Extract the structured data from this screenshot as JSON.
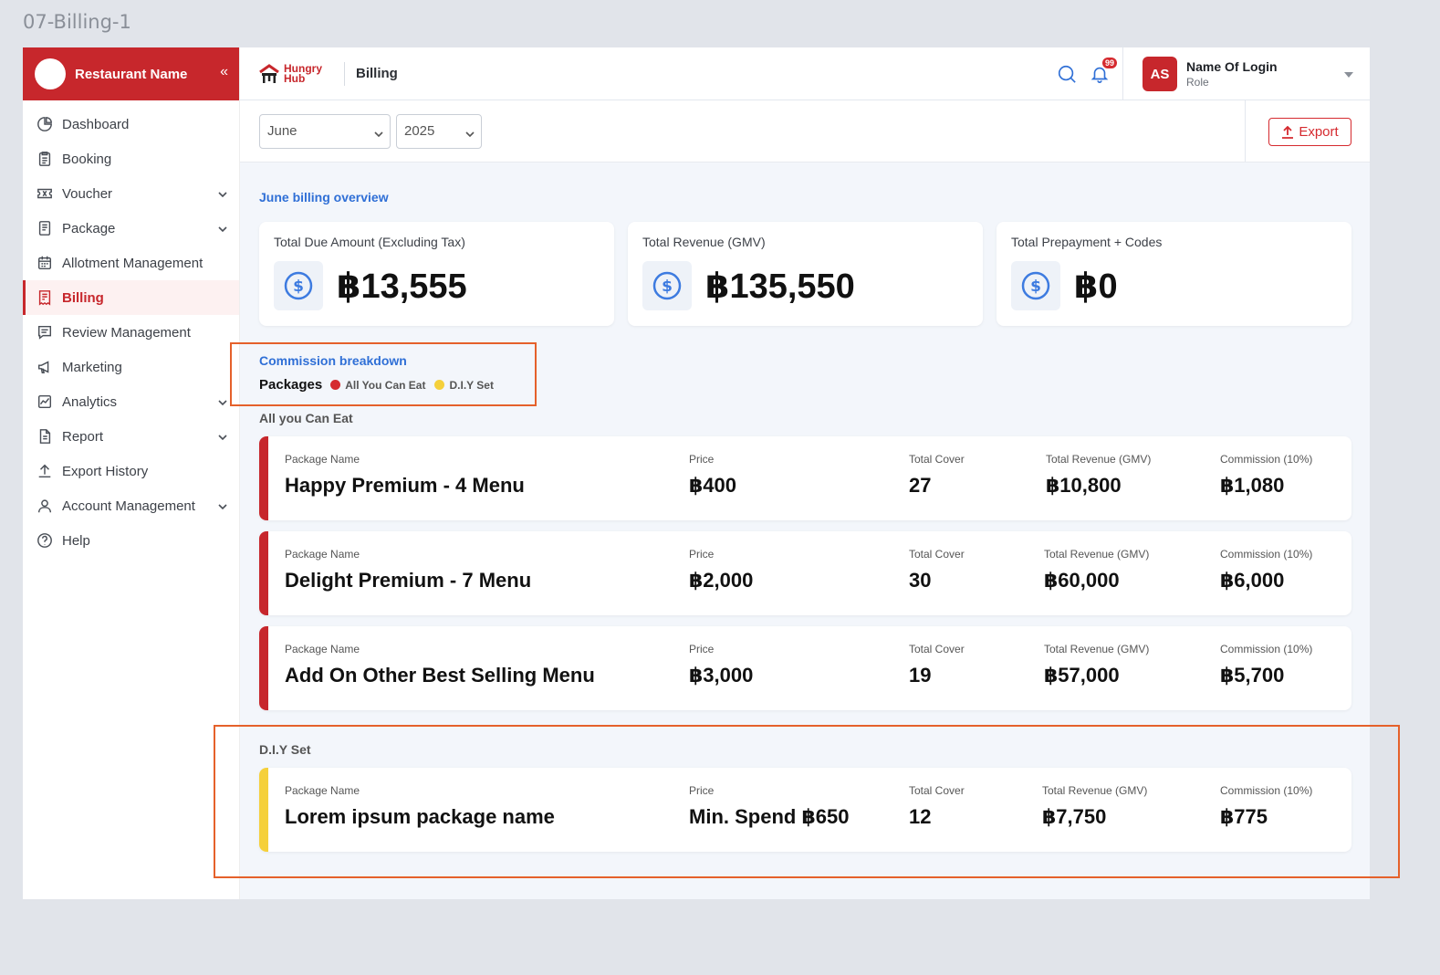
{
  "frame_label": "07-Billing-1",
  "sidebar": {
    "restaurant_name": "Restaurant Name",
    "collapse_glyph": "«",
    "items": [
      {
        "label": "Dashboard",
        "icon": "dashboard-icon",
        "expandable": false
      },
      {
        "label": "Booking",
        "icon": "booking-icon",
        "expandable": false
      },
      {
        "label": "Voucher",
        "icon": "voucher-icon",
        "expandable": true
      },
      {
        "label": "Package",
        "icon": "package-icon",
        "expandable": true
      },
      {
        "label": "Allotment Management",
        "icon": "calendar-icon",
        "expandable": false
      },
      {
        "label": "Billing",
        "icon": "billing-icon",
        "expandable": false,
        "active": true
      },
      {
        "label": "Review Management",
        "icon": "review-icon",
        "expandable": false
      },
      {
        "label": "Marketing",
        "icon": "megaphone-icon",
        "expandable": false
      },
      {
        "label": "Analytics",
        "icon": "analytics-icon",
        "expandable": true
      },
      {
        "label": "Report",
        "icon": "report-icon",
        "expandable": true
      },
      {
        "label": "Export History",
        "icon": "upload-icon",
        "expandable": false
      },
      {
        "label": "Account Management",
        "icon": "user-icon",
        "expandable": true
      },
      {
        "label": "Help",
        "icon": "help-icon",
        "expandable": false
      }
    ]
  },
  "header": {
    "brand_line1": "Hungry",
    "brand_line2": "Hub",
    "page_title": "Billing",
    "notification_count": "99",
    "user": {
      "initials": "AS",
      "name": "Name Of Login",
      "role": "Role"
    }
  },
  "filters": {
    "month": "June",
    "year": "2025",
    "export_label": "Export"
  },
  "overview": {
    "title": "June billing overview",
    "cards": [
      {
        "label": "Total Due Amount (Excluding Tax)",
        "value": "฿13,555"
      },
      {
        "label": "Total Revenue (GMV)",
        "value": "฿135,550"
      },
      {
        "label": "Total Prepayment + Codes",
        "value": "฿0"
      }
    ]
  },
  "commission": {
    "title": "Commission breakdown",
    "packages_label": "Packages",
    "legend": [
      {
        "label": "All You Can Eat",
        "color": "#d52a2f"
      },
      {
        "label": "D.I.Y Set",
        "color": "#f5d03b"
      }
    ],
    "headers": {
      "name": "Package Name",
      "price": "Price",
      "cover": "Total Cover",
      "revenue": "Total Revenue (GMV)",
      "commission": "Commission (10%)"
    },
    "groups": [
      {
        "title": "All you Can Eat",
        "color": "#d52a2f",
        "rows": [
          {
            "name": "Happy Premium - 4 Menu",
            "price": "฿400",
            "cover": "27",
            "revenue": "฿10,800",
            "commission": "฿1,080"
          },
          {
            "name": "Delight Premium - 7 Menu",
            "price": "฿2,000",
            "cover": "30",
            "revenue": "฿60,000",
            "commission": "฿6,000"
          },
          {
            "name": "Add On Other Best Selling Menu",
            "price": "฿3,000",
            "cover": "19",
            "revenue": "฿57,000",
            "commission": "฿5,700"
          }
        ]
      },
      {
        "title": "D.I.Y Set",
        "color": "#f5d03b",
        "rows": [
          {
            "name": "Lorem ipsum package name",
            "price": "Min. Spend ฿650",
            "cover": "12",
            "revenue": "฿7,750",
            "commission": "฿775"
          }
        ]
      }
    ]
  }
}
